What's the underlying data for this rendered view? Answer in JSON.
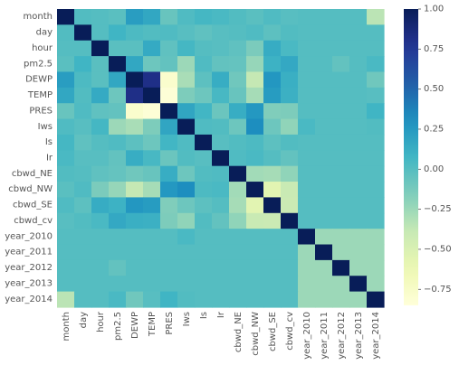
{
  "chart_data": {
    "type": "heatmap",
    "title": "",
    "xlabel": "",
    "ylabel": "",
    "labels": [
      "month",
      "day",
      "hour",
      "pm2.5",
      "DEWP",
      "TEMP",
      "PRES",
      "Iws",
      "Is",
      "Ir",
      "cbwd_NE",
      "cbwd_NW",
      "cbwd_SE",
      "cbwd_cv",
      "year_2010",
      "year_2011",
      "year_2012",
      "year_2013",
      "year_2014"
    ],
    "colorbar": {
      "colormap": "YlGnBu",
      "min": -0.85,
      "max": 1.0,
      "ticks": [
        1.0,
        0.75,
        0.5,
        0.25,
        0.0,
        -0.25,
        -0.5,
        -0.75
      ],
      "tick_labels": [
        "1.00",
        "0.75",
        "0.50",
        "0.25",
        "0.00",
        "−0.25",
        "−0.50",
        "−0.75"
      ]
    },
    "matrix": [
      [
        1.0,
        0.01,
        0.0,
        -0.02,
        0.23,
        0.17,
        -0.07,
        0.02,
        0.06,
        0.04,
        0.01,
        -0.02,
        0.02,
        -0.01,
        0.0,
        0.0,
        0.0,
        0.0,
        -0.35
      ],
      [
        0.01,
        1.0,
        0.0,
        0.08,
        0.03,
        0.01,
        0.02,
        -0.01,
        -0.04,
        -0.01,
        0.0,
        0.02,
        -0.03,
        0.01,
        0.0,
        0.0,
        0.0,
        0.0,
        0.0
      ],
      [
        0.0,
        0.0,
        1.0,
        -0.02,
        -0.02,
        0.15,
        -0.04,
        0.06,
        0.0,
        -0.01,
        -0.04,
        -0.14,
        0.14,
        0.04,
        0.0,
        0.0,
        0.0,
        0.0,
        0.0
      ],
      [
        -0.02,
        0.08,
        -0.02,
        1.0,
        0.17,
        -0.09,
        -0.05,
        -0.25,
        0.02,
        -0.05,
        -0.06,
        -0.23,
        0.1,
        0.16,
        0.0,
        0.0,
        -0.05,
        0.0,
        0.04
      ],
      [
        0.23,
        0.03,
        -0.02,
        0.17,
        1.0,
        0.82,
        -0.78,
        -0.29,
        -0.03,
        0.13,
        -0.1,
        -0.38,
        0.27,
        0.12,
        0.0,
        0.0,
        0.0,
        0.0,
        -0.1
      ],
      [
        0.17,
        0.01,
        0.15,
        -0.09,
        0.82,
        1.0,
        -0.83,
        -0.15,
        -0.09,
        0.05,
        -0.07,
        -0.28,
        0.24,
        0.11,
        0.0,
        0.0,
        0.0,
        0.0,
        -0.01
      ],
      [
        -0.07,
        0.02,
        -0.04,
        -0.05,
        -0.78,
        -0.83,
        1.0,
        0.18,
        0.07,
        -0.08,
        0.13,
        0.26,
        -0.16,
        -0.15,
        0.0,
        0.0,
        0.0,
        0.0,
        0.08
      ],
      [
        0.02,
        -0.01,
        0.06,
        -0.25,
        -0.29,
        -0.15,
        0.18,
        1.0,
        0.02,
        0.01,
        -0.09,
        0.32,
        -0.09,
        -0.21,
        0.04,
        0.0,
        0.0,
        0.0,
        0.01
      ],
      [
        0.06,
        -0.04,
        0.0,
        0.02,
        -0.03,
        -0.09,
        0.07,
        0.02,
        1.0,
        -0.01,
        0.01,
        0.03,
        -0.03,
        0.01,
        0.0,
        0.0,
        0.0,
        0.0,
        0.0
      ],
      [
        0.04,
        -0.01,
        -0.01,
        -0.05,
        0.13,
        0.05,
        -0.08,
        0.01,
        -0.01,
        1.0,
        0.02,
        0.04,
        0.0,
        -0.05,
        0.0,
        0.0,
        0.0,
        0.0,
        0.0
      ],
      [
        0.01,
        0.0,
        -0.04,
        -0.06,
        -0.1,
        -0.07,
        0.13,
        -0.09,
        0.01,
        0.02,
        1.0,
        -0.27,
        -0.28,
        -0.21,
        0.0,
        0.0,
        0.0,
        0.0,
        0.0
      ],
      [
        -0.02,
        0.02,
        -0.14,
        -0.23,
        -0.38,
        -0.28,
        0.26,
        0.32,
        0.03,
        0.04,
        -0.27,
        1.0,
        -0.55,
        -0.4,
        0.0,
        0.0,
        0.0,
        0.0,
        0.0
      ],
      [
        0.02,
        -0.03,
        0.14,
        0.1,
        0.27,
        0.24,
        -0.16,
        -0.09,
        -0.03,
        0.0,
        -0.28,
        -0.55,
        1.0,
        -0.41,
        0.0,
        0.0,
        0.0,
        0.0,
        0.0
      ],
      [
        -0.01,
        0.01,
        0.04,
        0.16,
        0.12,
        0.11,
        -0.15,
        -0.21,
        0.01,
        -0.05,
        -0.21,
        -0.4,
        -0.41,
        1.0,
        0.0,
        0.0,
        0.0,
        0.0,
        0.0
      ],
      [
        0.0,
        0.0,
        0.0,
        0.0,
        0.0,
        0.0,
        0.0,
        0.04,
        0.0,
        0.0,
        0.0,
        0.0,
        0.0,
        0.0,
        1.0,
        -0.25,
        -0.25,
        -0.25,
        -0.25
      ],
      [
        0.0,
        0.0,
        0.0,
        0.0,
        0.0,
        0.0,
        0.0,
        0.0,
        0.0,
        0.0,
        0.0,
        0.0,
        0.0,
        0.0,
        -0.25,
        1.0,
        -0.25,
        -0.25,
        -0.25
      ],
      [
        0.0,
        0.0,
        0.0,
        -0.05,
        0.0,
        0.0,
        0.0,
        0.0,
        0.0,
        0.0,
        0.0,
        0.0,
        0.0,
        0.0,
        -0.25,
        -0.25,
        1.0,
        -0.25,
        -0.25
      ],
      [
        0.0,
        0.0,
        0.0,
        0.0,
        0.0,
        0.0,
        0.0,
        0.0,
        0.0,
        0.0,
        0.0,
        0.0,
        0.0,
        0.0,
        -0.25,
        -0.25,
        -0.25,
        1.0,
        -0.25
      ],
      [
        -0.35,
        0.0,
        0.0,
        0.04,
        -0.1,
        -0.01,
        0.08,
        0.01,
        0.0,
        0.0,
        0.0,
        0.0,
        0.0,
        0.0,
        -0.25,
        -0.25,
        -0.25,
        -0.25,
        1.0
      ]
    ]
  }
}
